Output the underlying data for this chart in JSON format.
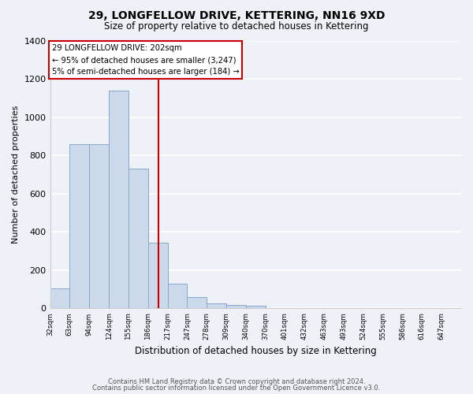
{
  "title": "29, LONGFELLOW DRIVE, KETTERING, NN16 9XD",
  "subtitle": "Size of property relative to detached houses in Kettering",
  "xlabel": "Distribution of detached houses by size in Kettering",
  "ylabel": "Number of detached properties",
  "bar_labels": [
    "32sqm",
    "63sqm",
    "94sqm",
    "124sqm",
    "155sqm",
    "186sqm",
    "217sqm",
    "247sqm",
    "278sqm",
    "309sqm",
    "340sqm",
    "370sqm",
    "401sqm",
    "432sqm",
    "463sqm",
    "493sqm",
    "524sqm",
    "555sqm",
    "586sqm",
    "616sqm",
    "647sqm"
  ],
  "bar_values": [
    105,
    860,
    860,
    1140,
    730,
    345,
    130,
    60,
    28,
    17,
    13,
    0,
    0,
    0,
    0,
    0,
    0,
    0,
    0,
    0,
    0
  ],
  "bar_color": "#ccd9ea",
  "bar_edge_color": "#85a8cc",
  "background_color": "#eef2f8",
  "grid_color": "#ffffff",
  "vline_color": "#cc0000",
  "annotation_title": "29 LONGFELLOW DRIVE: 202sqm",
  "annotation_line1": "← 95% of detached houses are smaller (3,247)",
  "annotation_line2": "5% of semi-detached houses are larger (184) →",
  "annotation_box_color": "#ffffff",
  "annotation_box_edge": "#cc0000",
  "ylim": [
    0,
    1400
  ],
  "yticks": [
    0,
    200,
    400,
    600,
    800,
    1000,
    1200,
    1400
  ],
  "footer1": "Contains HM Land Registry data © Crown copyright and database right 2024.",
  "footer2": "Contains public sector information licensed under the Open Government Licence v3.0."
}
